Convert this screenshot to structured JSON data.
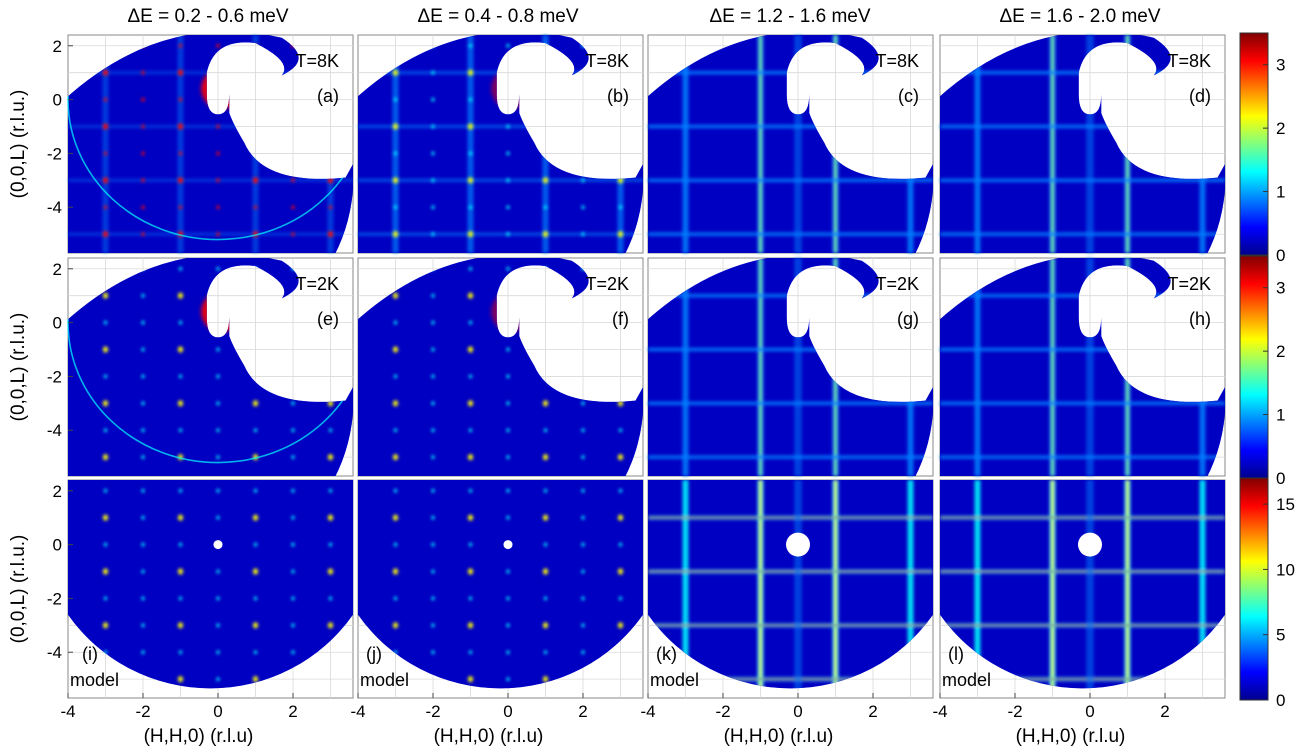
{
  "column_titles": [
    "ΔE = 0.2 - 0.6 meV",
    "ΔE = 0.4 - 0.8 meV",
    "ΔE = 1.2 - 1.6 meV",
    "ΔE = 1.6 - 2.0 meV"
  ],
  "colors": {
    "colormap": [
      "#00008f",
      "#0000ff",
      "#0080ff",
      "#00ffff",
      "#80ff80",
      "#ffff00",
      "#ff8000",
      "#ff0000",
      "#800000"
    ],
    "background": "#ffffff",
    "grid": "#d9d9d9"
  },
  "chart_data": [
    {
      "type": "heatmap",
      "panel": "(a)",
      "annotation": "T=8K",
      "xlim": [
        -4,
        3.6
      ],
      "ylim": [
        -5.7,
        2.4
      ],
      "xlabel": "",
      "ylabel": "(0,0,L) (r.l.u.)",
      "xticks": [],
      "yticks": [
        2,
        0,
        -2,
        -4
      ],
      "clim": [
        0,
        3.5
      ]
    },
    {
      "type": "heatmap",
      "panel": "(b)",
      "annotation": "T=8K",
      "xlim": [
        -4,
        3.6
      ],
      "ylim": [
        -5.7,
        2.4
      ],
      "xlabel": "",
      "ylabel": "",
      "xticks": [],
      "yticks": [],
      "clim": [
        0,
        3.5
      ]
    },
    {
      "type": "heatmap",
      "panel": "(c)",
      "annotation": "T=8K",
      "xlim": [
        -4,
        3.6
      ],
      "ylim": [
        -5.7,
        2.4
      ],
      "xlabel": "",
      "ylabel": "",
      "xticks": [],
      "yticks": [],
      "clim": [
        0,
        3.5
      ]
    },
    {
      "type": "heatmap",
      "panel": "(d)",
      "annotation": "T=8K",
      "xlim": [
        -4,
        3.6
      ],
      "ylim": [
        -5.7,
        2.4
      ],
      "xlabel": "",
      "ylabel": "",
      "xticks": [],
      "yticks": [],
      "clim": [
        0,
        3.5
      ],
      "colorbar_ticks": [
        0,
        1,
        2,
        3
      ]
    },
    {
      "type": "heatmap",
      "panel": "(e)",
      "annotation": "T=2K",
      "xlim": [
        -4,
        3.6
      ],
      "ylim": [
        -5.7,
        2.4
      ],
      "xlabel": "",
      "ylabel": "(0,0,L) (r.l.u.)",
      "xticks": [],
      "yticks": [
        2,
        0,
        -2,
        -4
      ],
      "clim": [
        0,
        3.5
      ]
    },
    {
      "type": "heatmap",
      "panel": "(f)",
      "annotation": "T=2K",
      "xlim": [
        -4,
        3.6
      ],
      "ylim": [
        -5.7,
        2.4
      ],
      "xlabel": "",
      "ylabel": "",
      "xticks": [],
      "yticks": [],
      "clim": [
        0,
        3.5
      ]
    },
    {
      "type": "heatmap",
      "panel": "(g)",
      "annotation": "T=2K",
      "xlim": [
        -4,
        3.6
      ],
      "ylim": [
        -5.7,
        2.4
      ],
      "xlabel": "",
      "ylabel": "",
      "xticks": [],
      "yticks": [],
      "clim": [
        0,
        3.5
      ]
    },
    {
      "type": "heatmap",
      "panel": "(h)",
      "annotation": "T=2K",
      "xlim": [
        -4,
        3.6
      ],
      "ylim": [
        -5.7,
        2.4
      ],
      "xlabel": "",
      "ylabel": "",
      "xticks": [],
      "yticks": [],
      "clim": [
        0,
        3.5
      ],
      "colorbar_ticks": [
        0,
        1,
        2,
        3
      ]
    },
    {
      "type": "heatmap",
      "panel": "(i)",
      "annotation": "model",
      "xlim": [
        -4,
        3.6
      ],
      "ylim": [
        -5.7,
        2.4
      ],
      "xlabel": "(H,H,0) (r.l.u)",
      "ylabel": "(0,0,L) (r.l.u.)",
      "xticks": [
        -4,
        -2,
        0,
        2
      ],
      "yticks": [
        2,
        0,
        -2,
        -4
      ],
      "clim": [
        0,
        17
      ]
    },
    {
      "type": "heatmap",
      "panel": "(j)",
      "annotation": "model",
      "xlim": [
        -4,
        3.6
      ],
      "ylim": [
        -5.7,
        2.4
      ],
      "xlabel": "(H,H,0) (r.l.u)",
      "ylabel": "",
      "xticks": [
        -4,
        -2,
        0,
        2
      ],
      "yticks": [],
      "clim": [
        0,
        17
      ]
    },
    {
      "type": "heatmap",
      "panel": "(k)",
      "annotation": "model",
      "xlim": [
        -4,
        3.6
      ],
      "ylim": [
        -5.7,
        2.4
      ],
      "xlabel": "(H,H,0) (r.l.u)",
      "ylabel": "",
      "xticks": [
        -4,
        -2,
        0,
        2
      ],
      "yticks": [],
      "clim": [
        0,
        17
      ]
    },
    {
      "type": "heatmap",
      "panel": "(l)",
      "annotation": "model",
      "xlim": [
        -4,
        3.6
      ],
      "ylim": [
        -5.7,
        2.4
      ],
      "xlabel": "(H,H,0) (r.l.u)",
      "ylabel": "",
      "xticks": [
        -4,
        -2,
        0,
        2
      ],
      "yticks": [],
      "clim": [
        0,
        17
      ],
      "colorbar_ticks": [
        0,
        5,
        10,
        15
      ]
    }
  ]
}
